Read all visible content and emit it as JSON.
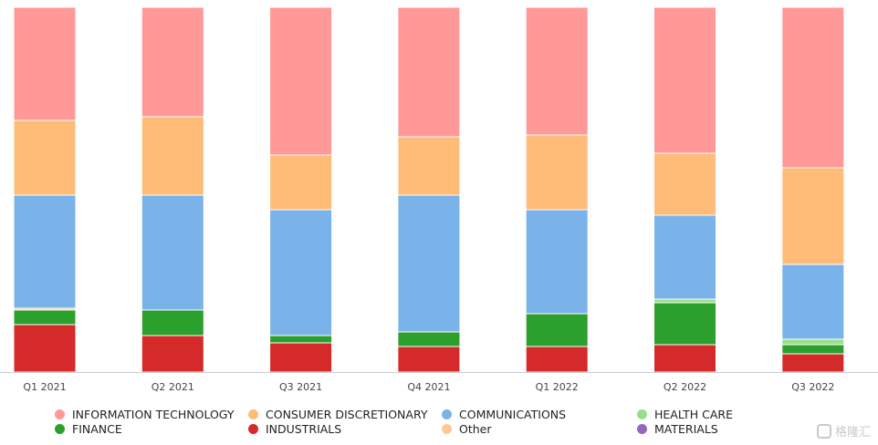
{
  "chart_data": {
    "type": "bar",
    "stacked": true,
    "normalized": true,
    "categories": [
      "Q1 2021",
      "Q2 2021",
      "Q3 2021",
      "Q4 2021",
      "Q1 2022",
      "Q2 2022",
      "Q3 2022"
    ],
    "series": [
      {
        "name": "INDUSTRIALS",
        "color": "#d42a2a",
        "values": [
          13.0,
          10.0,
          8.0,
          7.0,
          7.0,
          7.5,
          5.0
        ]
      },
      {
        "name": "FINANCE",
        "color": "#2ca02c",
        "values": [
          4.0,
          7.0,
          2.0,
          4.0,
          9.0,
          11.5,
          2.5
        ]
      },
      {
        "name": "HEALTH CARE",
        "color": "#98df8a",
        "values": [
          0.0,
          0.0,
          0.0,
          0.0,
          0.0,
          1.0,
          1.5
        ]
      },
      {
        "name": "MATERIALS",
        "color": "#9467bd",
        "values": [
          0.0,
          0.0,
          0.0,
          0.0,
          0.0,
          0.0,
          0.0
        ]
      },
      {
        "name": "Other",
        "color": "#ffc896",
        "values": [
          0.5,
          0.0,
          0.0,
          0.0,
          0.0,
          0.0,
          0.0
        ]
      },
      {
        "name": "COMMUNICATIONS",
        "color": "#7ab3ea",
        "values": [
          31.0,
          31.5,
          34.5,
          37.5,
          28.5,
          23.0,
          20.5
        ]
      },
      {
        "name": "CONSUMER DISCRETIONARY",
        "color": "#ffbb78",
        "values": [
          20.5,
          21.5,
          15.0,
          16.0,
          20.5,
          17.0,
          26.5
        ]
      },
      {
        "name": "INFORMATION TECHNOLOGY",
        "color": "#ff9896",
        "values": [
          31.0,
          30.0,
          40.5,
          35.5,
          35.0,
          40.0,
          44.0
        ]
      }
    ],
    "ylim": [
      0,
      100
    ],
    "grid": false,
    "legend_position": "bottom",
    "legend_order": [
      "INFORMATION TECHNOLOGY",
      "CONSUMER DISCRETIONARY",
      "COMMUNICATIONS",
      "HEALTH CARE",
      "FINANCE",
      "INDUSTRIALS",
      "Other",
      "MATERIALS"
    ]
  },
  "watermark": {
    "text": "格隆汇"
  }
}
